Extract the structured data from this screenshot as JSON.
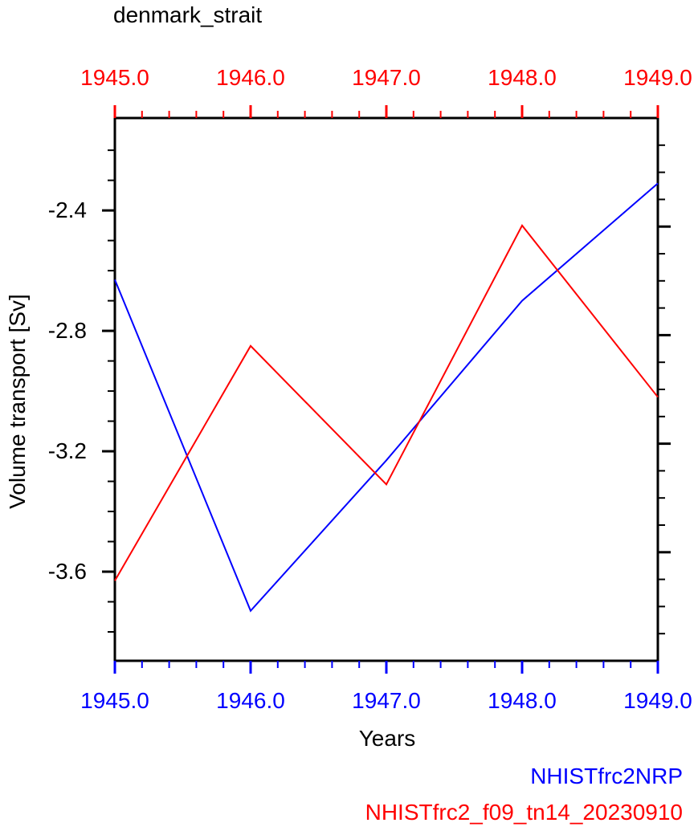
{
  "chart_data": {
    "type": "line",
    "title": "denmark_strait",
    "xlabel": "Years",
    "ylabel": "Volume transport [Sv]",
    "x": [
      1945,
      1946,
      1947,
      1948,
      1949
    ],
    "series": [
      {
        "name": "NHISTfrc2NRP",
        "color": "#0000ff",
        "values": [
          -2.63,
          -3.73,
          -3.23,
          -2.7,
          -2.31
        ]
      },
      {
        "name": "NHISTfrc2_f09_tn14_20230910",
        "color": "#ff0000",
        "values": [
          -3.63,
          -2.85,
          -3.31,
          -2.45,
          -3.02
        ]
      }
    ],
    "x_axis": {
      "xlim": [
        1945,
        1949
      ],
      "major_ticks": [
        1945,
        1946,
        1947,
        1948,
        1949
      ],
      "tick_labels": [
        "1945.0",
        "1946.0",
        "1947.0",
        "1948.0",
        "1949.0"
      ],
      "minor_step": 0.2,
      "top_color": "#ff0000",
      "bottom_color": "#0000ff"
    },
    "y_axis": {
      "ylim": [
        -3.896,
        -2.093
      ],
      "major_ticks": [
        -2.4,
        -2.8,
        -3.2,
        -3.6
      ],
      "tick_labels": [
        "-2.4",
        "-2.8",
        "-3.2",
        "-3.6"
      ],
      "minor_step": 0.1,
      "minor_range": [
        -3.8,
        -2.2
      ],
      "color": "#000000"
    },
    "right_axis": {
      "tick_count": 19,
      "major_every": 4,
      "color": "#000000"
    },
    "grid": false,
    "legend": {
      "position": "bottom-right",
      "entries": [
        {
          "label": "NHISTfrc2NRP",
          "color": "#0000ff"
        },
        {
          "label": "NHISTfrc2_f09_tn14_20230910",
          "color": "#ff0000"
        }
      ]
    }
  }
}
